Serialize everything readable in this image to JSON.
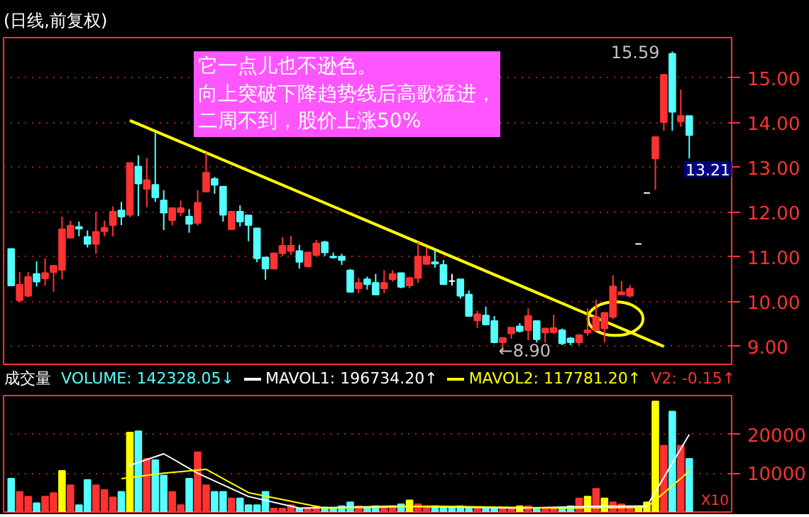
{
  "chart_data": [
    {
      "type": "candlestick",
      "title": "(日线,前复权)",
      "categories": [
        null,
        null,
        null,
        null,
        null,
        null,
        null,
        null,
        null,
        null,
        null,
        null,
        null,
        null,
        null,
        null,
        null,
        null,
        null,
        null,
        null,
        null,
        null,
        null,
        null,
        null,
        null,
        null,
        null,
        null,
        null,
        null,
        null,
        null,
        null,
        null,
        null,
        null,
        null,
        null,
        null,
        null,
        null,
        null,
        null,
        null,
        null,
        null,
        null,
        null,
        null,
        null,
        null,
        null,
        null,
        null,
        null,
        null,
        null,
        null,
        null,
        null,
        null,
        null,
        null,
        null,
        null,
        null,
        null,
        null,
        null,
        null,
        null,
        null,
        null,
        null,
        null,
        null,
        null,
        null,
        null
      ],
      "ohlc": [
        [
          11.18,
          11.18,
          10.36,
          10.36
        ],
        [
          10.03,
          10.66,
          9.98,
          10.38
        ],
        [
          10.13,
          10.66,
          10.1,
          10.55
        ],
        [
          10.62,
          10.9,
          10.34,
          10.45
        ],
        [
          10.52,
          10.97,
          10.36,
          10.64
        ],
        [
          10.66,
          10.82,
          10.22,
          10.8
        ],
        [
          10.71,
          11.9,
          10.5,
          11.62
        ],
        [
          11.43,
          11.81,
          11.41,
          11.7
        ],
        [
          11.67,
          11.79,
          11.46,
          11.63
        ],
        [
          11.45,
          11.59,
          11.21,
          11.29
        ],
        [
          11.29,
          12.0,
          11.07,
          11.56
        ],
        [
          11.57,
          11.81,
          11.46,
          11.65
        ],
        [
          11.71,
          12.13,
          11.46,
          12.01
        ],
        [
          12.04,
          12.23,
          11.71,
          11.9
        ],
        [
          11.94,
          13.1,
          11.88,
          13.1
        ],
        [
          13.02,
          13.27,
          11.91,
          12.64
        ],
        [
          12.52,
          13.21,
          12.11,
          12.72
        ],
        [
          12.61,
          13.77,
          12.23,
          12.33
        ],
        [
          12.26,
          12.49,
          11.6,
          11.99
        ],
        [
          11.82,
          12.09,
          11.71,
          12.09
        ],
        [
          12.0,
          12.26,
          11.91,
          12.09
        ],
        [
          11.9,
          12.07,
          11.54,
          11.74
        ],
        [
          11.76,
          12.49,
          11.7,
          12.21
        ],
        [
          12.46,
          13.33,
          12.44,
          12.88
        ],
        [
          12.74,
          12.79,
          12.41,
          12.61
        ],
        [
          12.57,
          12.57,
          11.79,
          11.94
        ],
        [
          11.62,
          12.01,
          11.6,
          12.01
        ],
        [
          12.01,
          12.15,
          11.68,
          11.79
        ],
        [
          11.93,
          11.93,
          11.35,
          11.71
        ],
        [
          11.64,
          11.64,
          10.88,
          10.97
        ],
        [
          10.99,
          10.99,
          10.49,
          10.74
        ],
        [
          10.74,
          11.1,
          10.72,
          11.08
        ],
        [
          11.08,
          11.44,
          11.02,
          11.25
        ],
        [
          11.13,
          11.47,
          11.04,
          11.25
        ],
        [
          11.13,
          11.27,
          10.74,
          10.89
        ],
        [
          10.79,
          11.1,
          10.76,
          11.1
        ],
        [
          11.04,
          11.38,
          11.02,
          11.3
        ],
        [
          11.33,
          11.36,
          11.02,
          11.1
        ],
        [
          11.01,
          11.1,
          10.96,
          10.99
        ],
        [
          11.01,
          11.07,
          10.82,
          10.93
        ],
        [
          10.7,
          10.73,
          10.22,
          10.22
        ],
        [
          10.3,
          10.53,
          10.19,
          10.42
        ],
        [
          10.5,
          10.56,
          10.27,
          10.39
        ],
        [
          10.42,
          10.62,
          10.16,
          10.16
        ],
        [
          10.3,
          10.7,
          10.19,
          10.42
        ],
        [
          10.5,
          10.7,
          10.45,
          10.62
        ],
        [
          10.64,
          10.64,
          10.3,
          10.33
        ],
        [
          10.36,
          10.56,
          10.3,
          10.53
        ],
        [
          10.53,
          11.33,
          10.42,
          11.01
        ],
        [
          10.84,
          11.21,
          10.82,
          11.01
        ],
        [
          10.88,
          11.16,
          10.76,
          10.85
        ],
        [
          10.82,
          10.93,
          10.39,
          10.39
        ],
        [
          10.46,
          10.62,
          10.36,
          10.46
        ],
        [
          10.5,
          10.5,
          10.07,
          10.13
        ],
        [
          10.16,
          10.25,
          9.68,
          9.68
        ],
        [
          9.58,
          9.8,
          9.41,
          9.72
        ],
        [
          9.69,
          9.89,
          9.49,
          9.49
        ],
        [
          9.57,
          9.68,
          9.07,
          9.09
        ],
        [
          9.09,
          9.19,
          8.9,
          9.19
        ],
        [
          9.29,
          9.42,
          9.17,
          9.42
        ],
        [
          9.45,
          9.52,
          9.31,
          9.34
        ],
        [
          9.36,
          9.85,
          9.14,
          9.68
        ],
        [
          9.57,
          9.57,
          9.09,
          9.16
        ],
        [
          9.31,
          9.4,
          9.09,
          9.4
        ],
        [
          9.32,
          9.71,
          9.28,
          9.41
        ],
        [
          9.36,
          9.4,
          9.03,
          9.07
        ],
        [
          9.18,
          9.21,
          9.03,
          9.09
        ],
        [
          9.09,
          9.28,
          9.03,
          9.25
        ],
        [
          9.31,
          9.85,
          9.24,
          9.36
        ],
        [
          9.36,
          10.04,
          9.36,
          9.66
        ],
        [
          9.4,
          9.75,
          9.09,
          9.75
        ],
        [
          9.66,
          10.59,
          9.61,
          10.34
        ],
        [
          10.16,
          10.46,
          10.16,
          10.21
        ],
        [
          10.13,
          10.37,
          10.09,
          10.29
        ],
        [
          11.29,
          11.29,
          11.29,
          11.29
        ],
        [
          12.43,
          12.43,
          12.43,
          12.43
        ],
        [
          13.2,
          13.68,
          12.5,
          13.68
        ],
        [
          14.01,
          15.07,
          13.82,
          15.07
        ],
        [
          15.54,
          15.59,
          13.82,
          14.24
        ],
        [
          14.03,
          14.74,
          13.91,
          14.15
        ],
        [
          14.15,
          14.15,
          13.2,
          13.72
        ]
      ],
      "colors": [
        "#54ffff",
        "#ff3232",
        "#ff3232",
        "#54ffff",
        "#ff3232",
        "#ff3232",
        "#ff3232",
        "#ff3232",
        "#54ffff",
        "#54ffff",
        "#ff3232",
        "#ff3232",
        "#ff3232",
        "#54ffff",
        "#ff3232",
        "#54ffff",
        "#ff3232",
        "#54ffff",
        "#54ffff",
        "#ff3232",
        "#ff3232",
        "#54ffff",
        "#ff3232",
        "#ff3232",
        "#54ffff",
        "#54ffff",
        "#ff3232",
        "#54ffff",
        "#54ffff",
        "#54ffff",
        "#54ffff",
        "#ff3232",
        "#ff3232",
        "#ff3232",
        "#54ffff",
        "#ff3232",
        "#ff3232",
        "#54ffff",
        "#54ffff",
        "#54ffff",
        "#54ffff",
        "#ff3232",
        "#54ffff",
        "#54ffff",
        "#ff3232",
        "#ff3232",
        "#54ffff",
        "#ff3232",
        "#ff3232",
        "#ff3232",
        "#54ffff",
        "#54ffff",
        "#ffffff",
        "#54ffff",
        "#54ffff",
        "#ff3232",
        "#54ffff",
        "#54ffff",
        "#ff3232",
        "#ff3232",
        "#54ffff",
        "#ff3232",
        "#54ffff",
        "#ff3232",
        "#ff3232",
        "#54ffff",
        "#54ffff",
        "#ff3232",
        "#ff3232",
        "#ff3232",
        "#ff3232",
        "#ff3232",
        "#ff3232",
        "#ff3232",
        "#ffffff",
        "#ffffff",
        "#ff3232",
        "#ff3232",
        "#54ffff",
        "#ff3232",
        "#54ffff"
      ],
      "series": [
        {
          "type": "line",
          "color": "#ffff00",
          "values": [
            null,
            null,
            null,
            null,
            null,
            null,
            null,
            null,
            null,
            null,
            null,
            null,
            null,
            null,
            14.05,
            null,
            null,
            null,
            null,
            null,
            null,
            null,
            null,
            null,
            null,
            null,
            null,
            null,
            null,
            null,
            null,
            null,
            null,
            null,
            null,
            null,
            null,
            null,
            null,
            null,
            null,
            null,
            null,
            null,
            null,
            null,
            null,
            null,
            null,
            null,
            null,
            null,
            null,
            null,
            null,
            null,
            null,
            null,
            null,
            null,
            null,
            null,
            null,
            null,
            null,
            null,
            null,
            null,
            null,
            null,
            null,
            null,
            null,
            null,
            null,
            null,
            null,
            9.0,
            null,
            null,
            null
          ]
        }
      ],
      "ylim": [
        8.6,
        15.9
      ],
      "yticks": [
        {
          "value": 9,
          "label": "9.00"
        },
        {
          "value": 10,
          "label": "10.00"
        },
        {
          "value": 11,
          "label": "11.00"
        },
        {
          "value": 12,
          "label": "12.00"
        },
        {
          "value": 13,
          "label": "13.00"
        },
        {
          "value": 14,
          "label": "14.00"
        },
        {
          "value": 15,
          "label": "15.00"
        }
      ],
      "grid": "y",
      "annotations": [
        "它一点儿也不逊色。向上突破下降趋势线后高歌猛进，二周不到，股价上涨50%",
        "15.59",
        "←8.90",
        "13.21"
      ]
    },
    {
      "type": "bar",
      "title": "成交量",
      "categories": [
        null,
        null,
        null,
        null,
        null,
        null,
        null,
        null,
        null,
        null,
        null,
        null,
        null,
        null,
        null,
        null,
        null,
        null,
        null,
        null,
        null,
        null,
        null,
        null,
        null,
        null,
        null,
        null,
        null,
        null,
        null,
        null,
        null,
        null,
        null,
        null,
        null,
        null,
        null,
        null,
        null,
        null,
        null,
        null,
        null,
        null,
        null,
        null,
        null,
        null,
        null,
        null,
        null,
        null,
        null,
        null,
        null,
        null,
        null,
        null,
        null,
        null,
        null,
        null,
        null,
        null,
        null,
        null,
        null,
        null,
        null,
        null,
        null,
        null,
        null,
        null,
        null,
        null,
        null,
        null,
        null
      ],
      "series": [
        {
          "name": "VOLUME: 142328.05↓",
          "type": "bar",
          "values": [
            8600,
            5200,
            4000,
            2300,
            4000,
            4900,
            10600,
            6900,
            1800,
            8300,
            6900,
            5700,
            3800,
            5200,
            20500,
            20800,
            13700,
            13400,
            9400,
            5200,
            1800,
            8600,
            15400,
            6900,
            5200,
            5200,
            3500,
            3500,
            1800,
            1800,
            5200,
            900,
            900,
            1800,
            900,
            1000,
            1500,
            1200,
            900,
            1500,
            2500,
            1500,
            1200,
            1500,
            1200,
            1500,
            2000,
            3000,
            2000,
            1500,
            1500,
            1200,
            1200,
            1500,
            1200,
            1000,
            900,
            1000,
            1200,
            1000,
            1500,
            1500,
            1000,
            900,
            1000,
            1200,
            1500,
            3500,
            4000,
            6000,
            3500,
            2500,
            2000,
            1500,
            1500,
            2500,
            28500,
            17100,
            25900,
            17100,
            13700
          ],
          "colors": [
            "#54ffff",
            "#ff3232",
            "#ff3232",
            "#54ffff",
            "#ff3232",
            "#ff3232",
            "#ffff00",
            "#ff3232",
            "#54ffff",
            "#54ffff",
            "#ff3232",
            "#ff3232",
            "#ff3232",
            "#54ffff",
            "#ffff00",
            "#54ffff",
            "#ff3232",
            "#54ffff",
            "#54ffff",
            "#ff3232",
            "#ff3232",
            "#54ffff",
            "#ff3232",
            "#ff3232",
            "#54ffff",
            "#54ffff",
            "#ff3232",
            "#54ffff",
            "#54ffff",
            "#54ffff",
            "#54ffff",
            "#ff3232",
            "#ff3232",
            "#ff3232",
            "#54ffff",
            "#ff3232",
            "#ff3232",
            "#54ffff",
            "#54ffff",
            "#54ffff",
            "#54ffff",
            "#ff3232",
            "#54ffff",
            "#54ffff",
            "#ff3232",
            "#ff3232",
            "#54ffff",
            "#ffff00",
            "#ff3232",
            "#ff3232",
            "#54ffff",
            "#54ffff",
            "#54ffff",
            "#54ffff",
            "#54ffff",
            "#ff3232",
            "#54ffff",
            "#54ffff",
            "#ff3232",
            "#ff3232",
            "#ffff00",
            "#ff3232",
            "#54ffff",
            "#ff3232",
            "#ff3232",
            "#54ffff",
            "#54ffff",
            "#ff3232",
            "#ffff00",
            "#ff3232",
            "#ffff00",
            "#ff3232",
            "#ff3232",
            "#ff3232",
            "#ffff00",
            "#ffff00",
            "#ffff00",
            "#ff3232",
            "#54ffff",
            "#ff3232",
            "#54ffff"
          ]
        },
        {
          "name": "MAVOL1: 196734.20↑",
          "type": "line",
          "color": "#ffffff",
          "values": [
            null,
            null,
            null,
            null,
            null,
            null,
            null,
            null,
            null,
            null,
            null,
            null,
            null,
            null,
            12000,
            null,
            null,
            null,
            15000,
            null,
            null,
            null,
            10000,
            null,
            null,
            null,
            null,
            null,
            4000,
            null,
            null,
            null,
            null,
            null,
            1000,
            null,
            null,
            null,
            null,
            null,
            null,
            null,
            null,
            null,
            null,
            1500,
            null,
            null,
            null,
            null,
            null,
            null,
            null,
            null,
            null,
            null,
            null,
            null,
            null,
            null,
            1000,
            null,
            null,
            null,
            null,
            null,
            null,
            null,
            null,
            null,
            1500,
            null,
            null,
            null,
            null,
            1500,
            null,
            null,
            null,
            null,
            20000
          ]
        },
        {
          "name": "MAVOL2: 117781.20↑",
          "type": "line",
          "color": "#ffff00",
          "values": [
            null,
            null,
            null,
            null,
            null,
            null,
            null,
            null,
            null,
            null,
            null,
            null,
            null,
            8600,
            null,
            null,
            null,
            null,
            10000,
            null,
            null,
            null,
            null,
            11000,
            null,
            null,
            null,
            null,
            5000,
            null,
            null,
            null,
            null,
            null,
            null,
            null,
            null,
            1000,
            null,
            null,
            null,
            null,
            null,
            null,
            null,
            null,
            null,
            null,
            null,
            null,
            1500,
            null,
            null,
            null,
            null,
            null,
            null,
            null,
            null,
            null,
            null,
            null,
            null,
            null,
            null,
            1000,
            null,
            null,
            null,
            null,
            null,
            null,
            null,
            null,
            null,
            1200,
            null,
            null,
            null,
            null,
            10500
          ]
        }
      ],
      "ylim": [
        0,
        30000
      ],
      "yticks": [
        10000,
        20000
      ],
      "grid": "y",
      "legend": "top",
      "annotations": [
        "V2: -0.15↑",
        "X10"
      ]
    }
  ]
}
